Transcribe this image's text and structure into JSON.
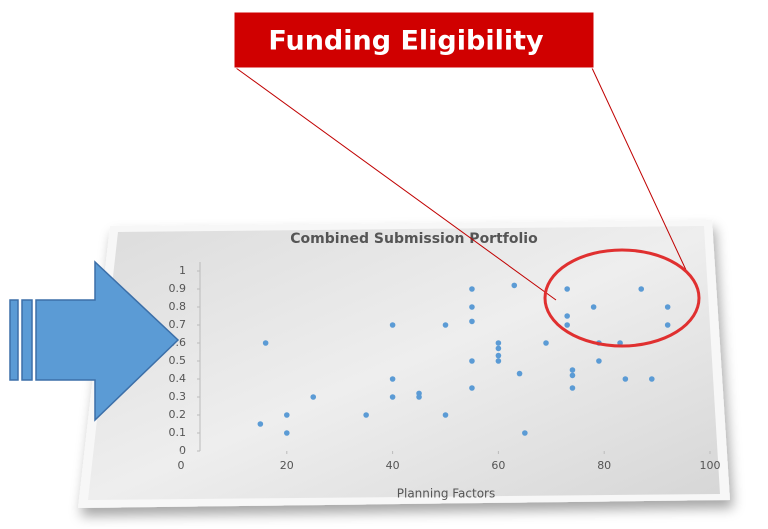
{
  "callout": "Funding Eligibility",
  "chart_data": {
    "type": "scatter",
    "title": "Combined Submission Portfolio",
    "xlabel": "Planning Factors",
    "x": [
      15,
      16,
      20,
      20,
      25,
      35,
      40,
      40,
      40,
      45,
      45,
      50,
      50,
      55,
      55,
      55,
      55,
      55,
      60,
      60,
      60,
      60,
      63,
      64,
      65,
      69,
      73,
      73,
      73,
      74,
      74,
      74,
      78,
      79,
      79,
      83,
      84,
      87,
      89,
      92,
      92
    ],
    "values": [
      0.15,
      0.6,
      0.2,
      0.1,
      0.3,
      0.2,
      0.7,
      0.4,
      0.3,
      0.32,
      0.3,
      0.7,
      0.2,
      0.9,
      0.8,
      0.72,
      0.5,
      0.35,
      0.6,
      0.57,
      0.53,
      0.5,
      0.92,
      0.43,
      0.1,
      0.6,
      0.9,
      0.75,
      0.7,
      0.45,
      0.42,
      0.35,
      0.8,
      0.6,
      0.5,
      0.6,
      0.4,
      0.9,
      0.4,
      0.8,
      0.7
    ],
    "color": "#5b9bd5",
    "xlim": [
      0,
      100
    ],
    "xticks": [
      0,
      20,
      40,
      60,
      80,
      100
    ],
    "ylim": [
      0,
      1
    ],
    "yticks": [
      0,
      0.1,
      0.2,
      0.3,
      0.4,
      0.5,
      0.6,
      0.7,
      0.8,
      0.9,
      1
    ],
    "grid": false
  }
}
